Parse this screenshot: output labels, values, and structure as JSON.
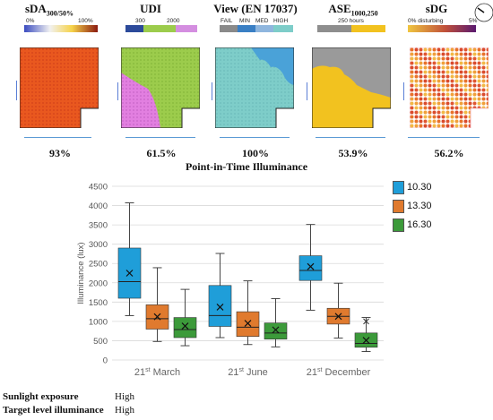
{
  "panels": [
    {
      "id": "sda",
      "title": "sDA",
      "title_sub": "300/50%",
      "value": "93%",
      "scale": {
        "left": "0%",
        "right": "100%"
      }
    },
    {
      "id": "udi",
      "title": "UDI",
      "title_sub": "",
      "value": "61.5%",
      "scale": {
        "left": "300",
        "right": "2000"
      }
    },
    {
      "id": "view",
      "title": "View (EN 17037)",
      "title_sub": "",
      "value": "100%",
      "scale": {
        "l1": "FAIL",
        "l2": "MIN",
        "l3": "MED",
        "l4": "HIGH"
      }
    },
    {
      "id": "ase",
      "title": "ASE",
      "title_sub": "1000,250",
      "value": "53.9%",
      "scale": {
        "mid": "250 hours"
      }
    },
    {
      "id": "sdg",
      "title": "sDG",
      "title_sub": "",
      "value": "56.2%",
      "scale": {
        "left": "0% disturbing",
        "right": "5%"
      }
    }
  ],
  "colors": {
    "series_1030": "#1f9ed9",
    "series_1330": "#e07a2e",
    "series_1630": "#3c9a3a",
    "sda_fill": "#e8551f",
    "udi_green": "#9ccc4c",
    "udi_pink": "#e27fe0",
    "view_fill": "#7ecdc9",
    "ase_yellow": "#f2c21f",
    "ase_gray": "#9a9a9a",
    "baseline": "#5b9bd5"
  },
  "chart_title": "Point-in-Time Illuminance",
  "chart_data": {
    "type": "box",
    "title": "Point-in-Time Illuminance",
    "ylabel": "Illuminance (lux)",
    "ylim": [
      0,
      4500
    ],
    "yticks": [
      0,
      500,
      1000,
      1500,
      2000,
      2500,
      3000,
      3500,
      4000,
      4500
    ],
    "grid": true,
    "legend_position": "right",
    "categories": [
      {
        "label": "21",
        "sup": "st",
        "rest": " March"
      },
      {
        "label": "21",
        "sup": "st",
        "rest": " June"
      },
      {
        "label": "21",
        "sup": "st",
        "rest": " December"
      }
    ],
    "series": [
      {
        "name": "10.30",
        "color": "#1f9ed9",
        "boxes": [
          {
            "min": 1150,
            "q1": 1600,
            "median": 2030,
            "q3": 2900,
            "max": 4070,
            "mean": 2250,
            "outliers": []
          },
          {
            "min": 580,
            "q1": 870,
            "median": 1150,
            "q3": 1930,
            "max": 2760,
            "mean": 1370,
            "outliers": []
          },
          {
            "min": 1290,
            "q1": 2060,
            "median": 2320,
            "q3": 2700,
            "max": 3510,
            "mean": 2420,
            "outliers": []
          }
        ]
      },
      {
        "name": "13.30",
        "color": "#e07a2e",
        "boxes": [
          {
            "min": 480,
            "q1": 800,
            "median": 1070,
            "q3": 1430,
            "max": 2390,
            "mean": 1120,
            "outliers": []
          },
          {
            "min": 400,
            "q1": 610,
            "median": 850,
            "q3": 1250,
            "max": 2050,
            "mean": 950,
            "outliers": []
          },
          {
            "min": 570,
            "q1": 930,
            "median": 1130,
            "q3": 1340,
            "max": 1990,
            "mean": 1130,
            "outliers": []
          }
        ]
      },
      {
        "name": "16.30",
        "color": "#3c9a3a",
        "boxes": [
          {
            "min": 370,
            "q1": 580,
            "median": 790,
            "q3": 1100,
            "max": 1830,
            "mean": 880,
            "outliers": []
          },
          {
            "min": 340,
            "q1": 540,
            "median": 700,
            "q3": 960,
            "max": 1590,
            "mean": 780,
            "outliers": []
          },
          {
            "min": 220,
            "q1": 330,
            "median": 430,
            "q3": 700,
            "max": 1100,
            "mean": 510,
            "outliers": [
              1000
            ]
          }
        ]
      }
    ]
  },
  "info": [
    {
      "label": "Sunlight exposure",
      "value": "High"
    },
    {
      "label": "Target level illuminance",
      "value": "High"
    }
  ]
}
